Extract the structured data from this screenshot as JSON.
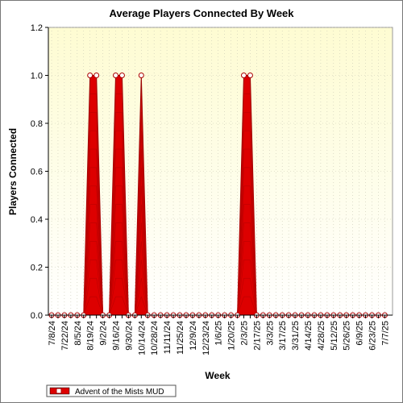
{
  "chart_data": {
    "type": "area",
    "title": "Average Players Connected By Week",
    "xlabel": "Week",
    "ylabel": "Players Connected",
    "ylim": [
      0,
      1.2
    ],
    "yticks": [
      "0.0",
      "0.2",
      "0.4",
      "0.6",
      "0.8",
      "1.0",
      "1.2"
    ],
    "grid": true,
    "legend_position": "bottom-left",
    "x_tick_labels": [
      "7/8/24",
      "7/22/24",
      "8/5/24",
      "8/19/24",
      "9/2/24",
      "9/16/24",
      "9/30/24",
      "10/14/24",
      "10/28/24",
      "11/11/24",
      "11/25/24",
      "12/9/24",
      "12/23/24",
      "1/6/25",
      "1/20/25",
      "2/3/25",
      "2/17/25",
      "3/3/25",
      "3/17/25",
      "3/31/25",
      "4/14/25",
      "4/28/25",
      "5/12/25",
      "5/26/25",
      "6/9/25",
      "6/23/25",
      "7/7/25"
    ],
    "x": [
      "7/8/24",
      "7/15/24",
      "7/22/24",
      "7/29/24",
      "8/5/24",
      "8/12/24",
      "8/19/24",
      "8/26/24",
      "9/2/24",
      "9/9/24",
      "9/16/24",
      "9/23/24",
      "9/30/24",
      "10/7/24",
      "10/14/24",
      "10/21/24",
      "10/28/24",
      "11/4/24",
      "11/11/24",
      "11/18/24",
      "11/25/24",
      "12/2/24",
      "12/9/24",
      "12/16/24",
      "12/23/24",
      "12/30/24",
      "1/6/25",
      "1/13/25",
      "1/20/25",
      "1/27/25",
      "2/3/25",
      "2/10/25",
      "2/17/25",
      "2/24/25",
      "3/3/25",
      "3/10/25",
      "3/17/25",
      "3/24/25",
      "3/31/25",
      "4/7/25",
      "4/14/25",
      "4/21/25",
      "4/28/25",
      "5/5/25",
      "5/12/25",
      "5/19/25",
      "5/26/25",
      "6/2/25",
      "6/9/25",
      "6/16/25",
      "6/23/25",
      "6/30/25",
      "7/7/25"
    ],
    "series": [
      {
        "name": "Advent of the Mists MUD",
        "color": "#dd0000",
        "values": [
          0,
          0,
          0,
          0,
          0,
          0,
          1,
          1,
          0,
          0,
          1,
          1,
          0,
          0,
          1,
          0,
          0,
          0,
          0,
          0,
          0,
          0,
          0,
          0,
          0,
          0,
          0,
          0,
          0,
          0,
          1,
          1,
          0,
          0,
          0,
          0,
          0,
          0,
          0,
          0,
          0,
          0,
          0,
          0,
          0,
          0,
          0,
          0,
          0,
          0,
          0,
          0,
          0
        ]
      }
    ]
  }
}
